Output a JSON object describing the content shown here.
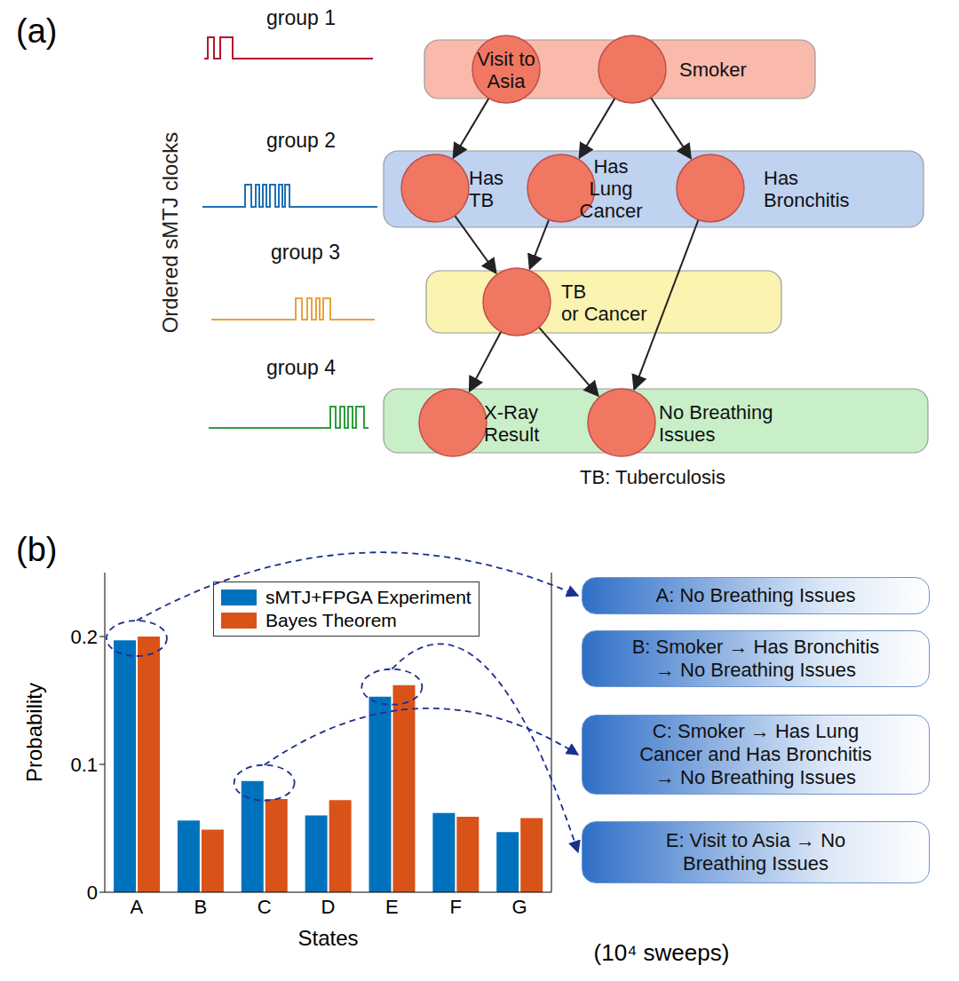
{
  "panel_a": {
    "label": "(a)",
    "clock_axis_label": "Ordered sMTJ clocks",
    "groups": [
      {
        "name": "group 1",
        "nodes": [
          {
            "lines": [
              "Visit to",
              "Asia"
            ]
          },
          {
            "lines": [
              "Smoker"
            ]
          }
        ]
      },
      {
        "name": "group 2",
        "nodes": [
          {
            "lines": [
              "Has",
              "TB"
            ]
          },
          {
            "lines": [
              "Has",
              "Lung",
              "Cancer"
            ]
          },
          {
            "lines": [
              "Has",
              "Bronchitis"
            ]
          }
        ]
      },
      {
        "name": "group 3",
        "nodes": [
          {
            "lines": [
              "TB",
              "or Cancer"
            ]
          }
        ]
      },
      {
        "name": "group 4",
        "nodes": [
          {
            "lines": [
              "X-Ray",
              "Result"
            ]
          },
          {
            "lines": [
              "No Breathing",
              "Issues"
            ]
          }
        ]
      }
    ],
    "footnote": "TB: Tuberculosis"
  },
  "chart_data": {
    "type": "bar",
    "panel_label": "(b)",
    "categories": [
      "A",
      "B",
      "C",
      "D",
      "E",
      "F",
      "G"
    ],
    "series": [
      {
        "name": "sMTJ+FPGA Experiment",
        "color": "#0072bd",
        "values": [
          0.197,
          0.056,
          0.087,
          0.06,
          0.153,
          0.062,
          0.047
        ]
      },
      {
        "name": "Bayes Theorem",
        "color": "#d95319",
        "values": [
          0.2,
          0.049,
          0.073,
          0.072,
          0.162,
          0.059,
          0.058
        ]
      }
    ],
    "x_label": "States",
    "y_label": "Probability",
    "ylim": [
      0,
      0.25
    ],
    "yticks": [
      0,
      0.1,
      0.2
    ],
    "legend": "top",
    "annotations": [
      {
        "category": "A",
        "lines": [
          "A: No Breathing Issues"
        ]
      },
      {
        "category": "B",
        "lines": [
          "B: Smoker → Has Bronchitis",
          "→ No Breathing Issues"
        ]
      },
      {
        "category": "C",
        "lines": [
          "C: Smoker → Has Lung",
          "Cancer and Has Bronchitis",
          "→ No Breathing Issues"
        ]
      },
      {
        "category": "E",
        "lines": [
          "E: Visit to Asia → No",
          "Breathing Issues"
        ]
      }
    ],
    "note": "(10⁴ sweeps)"
  }
}
